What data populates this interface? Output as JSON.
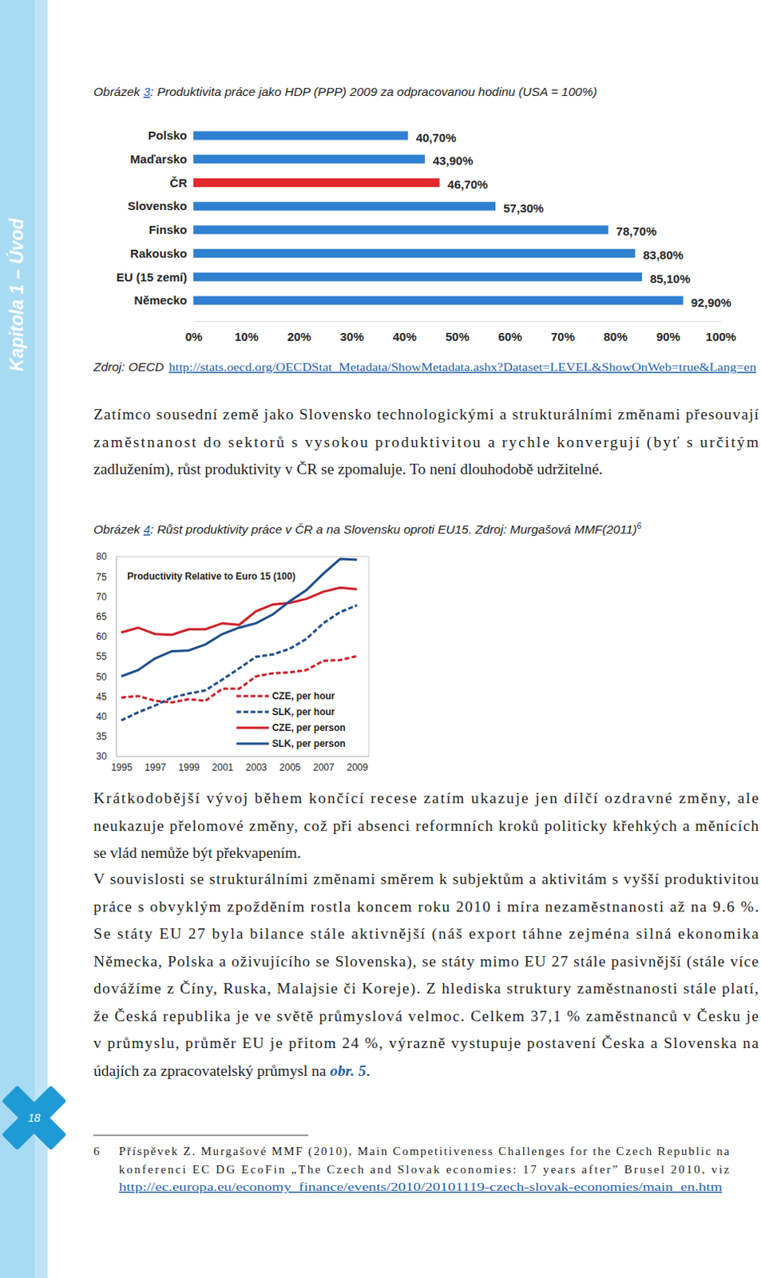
{
  "document": {
    "sidebar": "Kapitola 1 – Úvod",
    "page_number": "18",
    "figures": [
      {
        "caption": {
          "prefix": "Obrázek ",
          "number": "3",
          "text": ": Produktivita práce jako HDP (PPP) 2009 za odpracovanou hodinu (USA = 100%)"
        },
        "source": {
          "text": "Zdroj: OECD ",
          "link": "http://stats.oecd.org/OECDStat_Metadata/ShowMetadata.ashx?Dataset=LEVEL&ShowOnWeb=true&Lang=en"
        }
      },
      {
        "caption": {
          "prefix": "Obrázek ",
          "number": "4",
          "text": ": Růst produktivity práce v ČR a na Slovensku oproti EU15. Zdroj: Murgašová MMF(2011)",
          "note": "6"
        }
      }
    ],
    "paragraphs": [
      {
        "lines": [
          "Zatímco sousední země jako Slovensko technologickými a strukturálními změnami přesouvají",
          "zaměstnanost do sektorů s vysokou produktivitou a rychle konvergují (byť s určitým",
          "zadlužením), růst produktivity v ČR se zpomaluje. To není dlouhodobě udržitelné."
        ]
      },
      {
        "lines": [
          "Krátkodobější vývoj během končící recese zatím ukazuje jen dílčí ozdravné změny, ale",
          "neukazuje přelomové změny, což při absenci reformních kroků politicky křehkých a měnících",
          "se vlád nemůže být překvapením."
        ]
      },
      {
        "lines": [
          "V souvislosti se strukturálními změnami směrem k subjektům a aktivitám s vyšší produktivitou",
          "práce s obvyklým zpožděním rostla koncem roku 2010 i míra nezaměstnanosti až na 9.6 %.",
          "Se státy EU 27 byla bilance stále aktivnější (náš export táhne zejména silná ekonomika",
          "Německa, Polska a oživujícího se Slovenska), se státy mimo EU 27 stále pasivnější (stále více",
          "dovážíme z Číny, Ruska, Malajsie či Koreje). Z hlediska struktury zaměstnanosti stále platí,",
          "že Česká republika je ve světě průmyslová velmoc. Celkem 37,1 % zaměstnanců v Česku je",
          "v průmyslu, průměr EU je přitom 24 %, výrazně vystupuje postavení Česka a Slovenska na"
        ],
        "tail": {
          "text": "údajích za zpracovatelský průmysl na ",
          "ref": "obr. 5",
          "end": "."
        }
      }
    ],
    "footnote": {
      "number": "6",
      "lines": [
        "Příspěvek Z. Murgašové MMF (2010), Main Competitiveness Challenges for the Czech Republic na",
        "konferenci EC DG EcoFin „The Czech and Slovak economies: 17 years after” Brusel 2010, viz"
      ],
      "link": "http://ec.europa.eu/economy_finance/events/2010/20101119-czech-slovak-economies/main_en.htm"
    }
  },
  "chart_data": [
    {
      "type": "bar",
      "orientation": "horizontal",
      "data_labels": true,
      "categories": [
        "Polsko",
        "Maďarsko",
        "ČR",
        "Slovensko",
        "Finsko",
        "Rakousko",
        "EU (15 zemí)",
        "Německo"
      ],
      "values": [
        40.7,
        43.9,
        46.7,
        57.3,
        78.7,
        83.8,
        85.1,
        92.9
      ],
      "value_labels": [
        "40,70%",
        "43,90%",
        "46,70%",
        "57,30%",
        "78,70%",
        "83,80%",
        "85,10%",
        "92,90%"
      ],
      "colors": [
        "#2f80d1",
        "#2f80d1",
        "#e3262b",
        "#2f80d1",
        "#2f80d1",
        "#2f80d1",
        "#2f80d1",
        "#2f80d1"
      ],
      "xlim": [
        0,
        100
      ],
      "xticks": [
        {
          "value": 0,
          "label": "0%"
        },
        {
          "value": 10,
          "label": "10%"
        },
        {
          "value": 20,
          "label": "20%"
        },
        {
          "value": 30,
          "label": "30%"
        },
        {
          "value": 40,
          "label": "40%"
        },
        {
          "value": 50,
          "label": "50%"
        },
        {
          "value": 60,
          "label": "60%"
        },
        {
          "value": 70,
          "label": "70%"
        },
        {
          "value": 80,
          "label": "80%"
        },
        {
          "value": 90,
          "label": "90%"
        },
        {
          "value": 100,
          "label": "100%"
        }
      ]
    },
    {
      "type": "line",
      "title": "Productivity Relative to Euro 15 (100)",
      "legend": "lower right",
      "x": [
        1995,
        1996,
        1997,
        1998,
        1999,
        2000,
        2001,
        2002,
        2003,
        2004,
        2005,
        2006,
        2007,
        2008,
        2009
      ],
      "xlim": [
        1994.7,
        2009.7
      ],
      "xticks": [
        1995,
        1997,
        1999,
        2001,
        2003,
        2005,
        2007,
        2009
      ],
      "ylim": [
        30,
        80
      ],
      "yticks": [
        30,
        35,
        40,
        45,
        50,
        55,
        60,
        65,
        70,
        75,
        80
      ],
      "series": [
        {
          "name": "CZE, per hour",
          "color": "#d0202a",
          "line_style": "dashed",
          "values": [
            44.7,
            45.1,
            43.9,
            43.5,
            44.3,
            43.9,
            46.9,
            46.9,
            50.0,
            50.8,
            51.0,
            51.6,
            53.9,
            54.1,
            55.1
          ]
        },
        {
          "name": "SLK, per hour",
          "color": "#1f4e8c",
          "line_style": "dashed",
          "values": [
            39.0,
            41.0,
            42.7,
            44.7,
            45.7,
            46.5,
            49.2,
            52.0,
            54.9,
            55.5,
            56.9,
            59.4,
            63.3,
            66.1,
            67.8
          ]
        },
        {
          "name": "CZE, per person",
          "color": "#d0202a",
          "line_style": "solid",
          "values": [
            61.0,
            62.2,
            60.6,
            60.4,
            61.8,
            61.8,
            63.3,
            62.9,
            66.3,
            68.0,
            68.4,
            69.4,
            71.2,
            72.2,
            71.8
          ]
        },
        {
          "name": "SLK, per person",
          "color": "#1f4e8c",
          "line_style": "solid",
          "values": [
            50.0,
            51.6,
            54.5,
            56.3,
            56.5,
            58.0,
            60.6,
            62.2,
            63.3,
            65.5,
            68.8,
            71.6,
            75.7,
            79.4,
            79.2
          ]
        }
      ]
    }
  ]
}
